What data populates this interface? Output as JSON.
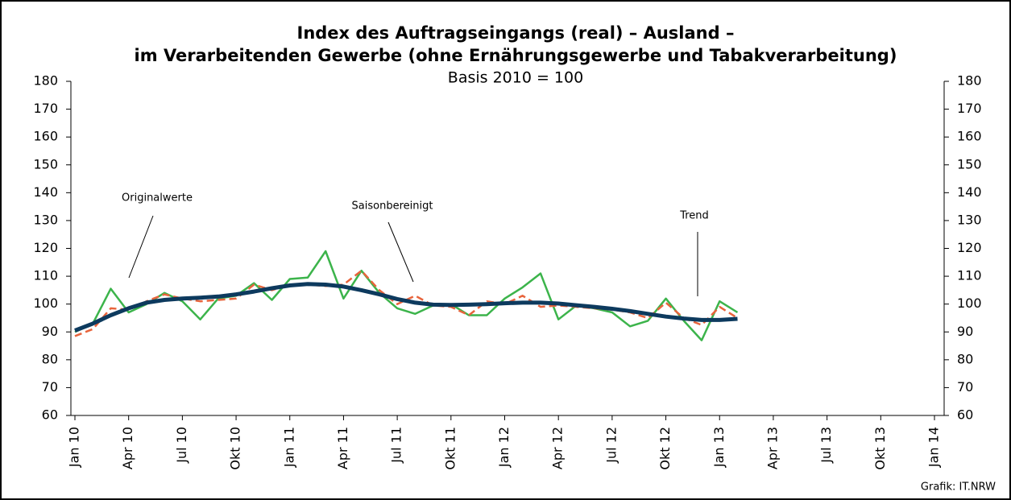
{
  "chart_data": {
    "type": "line",
    "title": "Index des Auftragseingangs (real) – Ausland –",
    "title_line2": "im Verarbeitenden Gewerbe (ohne Ernährungsgewerbe und Tabakverarbeitung)",
    "subtitle": "Basis 2010 = 100",
    "source": "Grafik: IT.NRW",
    "categories": [
      "Jan 10",
      null,
      null,
      "Apr 10",
      null,
      null,
      "Jul 10",
      null,
      null,
      "Okt 10",
      null,
      null,
      "Jan 11",
      null,
      null,
      "Apr 11",
      null,
      null,
      "Jul 11",
      null,
      null,
      "Okt 11",
      null,
      null,
      "Jan 12",
      null,
      null,
      "Apr 12",
      null,
      null,
      "Jul 12",
      null,
      null,
      "Okt 12",
      null,
      null,
      "Jan 13",
      null,
      null,
      "Apr 13",
      null,
      null,
      "Jul 13",
      null,
      null,
      "Okt 13",
      null,
      null,
      "Jan 14"
    ],
    "series": [
      {
        "name": "Originalwerte",
        "color": "#3cb44b",
        "values": [
          90,
          93,
          105.5,
          97,
          100,
          104,
          101,
          94.5,
          102,
          103,
          107.5,
          101.5,
          109,
          109.5,
          119,
          102,
          112,
          104,
          98.5,
          96.5,
          99.5,
          100,
          96,
          96,
          102,
          106,
          111,
          94.5,
          99.5,
          98.5,
          97,
          92,
          94,
          102,
          94,
          87,
          101,
          97,
          null,
          null,
          null,
          null,
          null,
          null,
          null,
          null,
          null,
          null,
          null
        ]
      },
      {
        "name": "Saisonbereinigt",
        "color": "#e8643c",
        "values": [
          88.5,
          91,
          98.5,
          98,
          101,
          103.5,
          102,
          101,
          101.5,
          102,
          107,
          105,
          107,
          107,
          106.5,
          107,
          112,
          105,
          100,
          103,
          99.5,
          99,
          96,
          101,
          100,
          103,
          99,
          99.5,
          99,
          98.5,
          98,
          97,
          95,
          100.5,
          95,
          92.5,
          99,
          95,
          null,
          null,
          null,
          null,
          null,
          null,
          null,
          null,
          null,
          null,
          null
        ]
      },
      {
        "name": "Trend",
        "color": "#0d3a5e",
        "values": [
          90.5,
          93,
          96,
          98.5,
          100.5,
          101.5,
          102,
          102.3,
          102.7,
          103.5,
          104.5,
          105.7,
          106.7,
          107.2,
          107,
          106.3,
          105,
          103.5,
          101.8,
          100.5,
          99.8,
          99.7,
          99.8,
          100,
          100.3,
          100.5,
          100.5,
          100.2,
          99.6,
          99,
          98.3,
          97.5,
          96.5,
          95.5,
          94.8,
          94.3,
          94.3,
          94.7,
          null,
          null,
          null,
          null,
          null,
          null,
          null,
          null,
          null,
          null,
          null
        ]
      }
    ],
    "ylim": [
      60,
      180
    ],
    "yticks": [
      60,
      70,
      80,
      90,
      100,
      110,
      120,
      130,
      140,
      150,
      160,
      170,
      180
    ],
    "y2lim": [
      60,
      180
    ],
    "y2ticks": [
      60,
      70,
      80,
      90,
      100,
      110,
      120,
      130,
      140,
      150,
      160,
      170,
      180
    ]
  }
}
